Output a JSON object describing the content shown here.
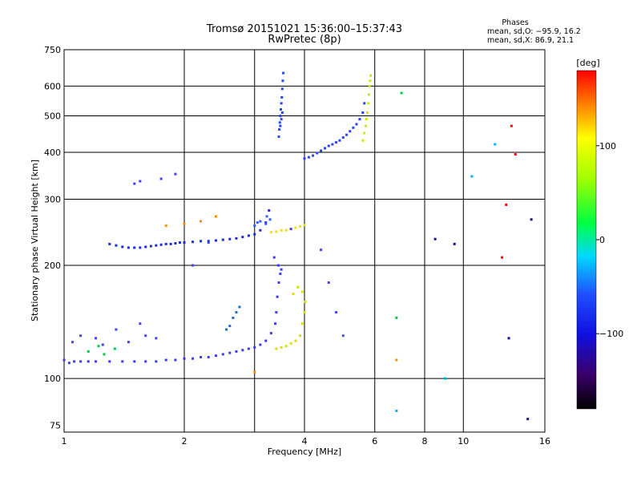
{
  "header": {
    "title_line1": "Tromsø 20151021 15:36:00–15:37:43",
    "title_line2": "RwPretec (8p)",
    "stats_title": "Phases",
    "stats_line1": "mean, sd,O: −95.9, 16.2",
    "stats_line2": "mean, sd,X:  86.9, 21.1"
  },
  "chart_data": {
    "type": "scatter",
    "title": "Tromsø 20151021 15:36:00–15:37:43",
    "subtitle": "RwPretec (8p)",
    "xlabel": "Frequency [MHz]",
    "ylabel": "Stationary phase Virtual Height [km]",
    "x_scale": "log",
    "y_scale": "log",
    "xlim": [
      1,
      16
    ],
    "ylim": [
      72,
      750
    ],
    "x_ticks": [
      1,
      2,
      4,
      6,
      8,
      10,
      16
    ],
    "x_tick_labels": [
      "1",
      "2",
      "4",
      "6",
      "8",
      "10",
      "16"
    ],
    "x_gridlines": [
      1,
      2,
      3,
      4,
      6,
      8,
      10,
      16
    ],
    "y_ticks": [
      75,
      100,
      200,
      300,
      400,
      500,
      600,
      750
    ],
    "y_tick_labels": [
      "75",
      "100",
      "200",
      "300",
      "400",
      "500",
      "600",
      "750"
    ],
    "y_gridlines": [
      100,
      200,
      300,
      400,
      500,
      600
    ],
    "grid": true,
    "colorbar": {
      "label": "[deg]",
      "min": -180,
      "max": 180,
      "ticks": [
        100,
        0,
        -100
      ],
      "tick_labels": [
        "100",
        "0",
        "−100"
      ]
    },
    "series": [
      {
        "color": "#3a3aff",
        "points": [
          [
            1.0,
            112
          ],
          [
            1.03,
            110
          ],
          [
            1.06,
            111
          ],
          [
            1.1,
            111
          ],
          [
            1.15,
            111
          ],
          [
            1.2,
            111
          ],
          [
            1.3,
            111
          ],
          [
            1.4,
            111
          ],
          [
            1.5,
            111
          ],
          [
            1.6,
            111
          ],
          [
            1.7,
            111
          ],
          [
            1.8,
            112
          ],
          [
            1.9,
            112
          ],
          [
            2.0,
            113
          ],
          [
            2.1,
            113
          ],
          [
            2.2,
            114
          ],
          [
            2.3,
            114
          ],
          [
            2.4,
            115
          ],
          [
            2.5,
            116
          ],
          [
            2.6,
            117
          ],
          [
            2.7,
            118
          ],
          [
            2.8,
            119
          ],
          [
            2.9,
            120
          ],
          [
            3.0,
            121
          ],
          [
            3.1,
            123
          ],
          [
            3.2,
            126
          ],
          [
            3.3,
            132
          ],
          [
            3.38,
            140
          ],
          [
            3.4,
            150
          ],
          [
            3.42,
            165
          ],
          [
            3.45,
            180
          ],
          [
            3.48,
            190
          ],
          [
            3.5,
            195
          ],
          [
            3.44,
            200
          ],
          [
            3.36,
            210
          ]
        ],
        "phase": -100
      },
      {
        "color": "#1a2ae0",
        "points": [
          [
            1.3,
            228
          ],
          [
            1.35,
            226
          ],
          [
            1.4,
            224
          ],
          [
            1.45,
            223
          ],
          [
            1.5,
            223
          ],
          [
            1.55,
            223
          ],
          [
            1.6,
            224
          ],
          [
            1.65,
            225
          ],
          [
            1.7,
            226
          ],
          [
            1.75,
            227
          ],
          [
            1.8,
            228
          ],
          [
            1.85,
            228
          ],
          [
            1.9,
            229
          ],
          [
            1.95,
            230
          ],
          [
            2.0,
            230
          ],
          [
            2.1,
            231
          ],
          [
            2.2,
            232
          ],
          [
            2.3,
            232
          ],
          [
            2.4,
            233
          ],
          [
            2.5,
            234
          ],
          [
            2.6,
            235
          ],
          [
            2.7,
            236
          ],
          [
            2.8,
            238
          ],
          [
            2.9,
            240
          ],
          [
            3.0,
            242
          ],
          [
            3.1,
            248
          ],
          [
            3.2,
            260
          ],
          [
            3.26,
            280
          ]
        ],
        "phase": -110
      },
      {
        "color": "#2a40ff",
        "points": [
          [
            4.0,
            385
          ],
          [
            4.1,
            388
          ],
          [
            4.2,
            392
          ],
          [
            4.3,
            398
          ],
          [
            4.4,
            404
          ],
          [
            4.5,
            410
          ],
          [
            4.6,
            416
          ],
          [
            4.7,
            420
          ],
          [
            4.8,
            425
          ],
          [
            4.9,
            430
          ],
          [
            5.0,
            438
          ],
          [
            5.1,
            445
          ],
          [
            5.2,
            455
          ],
          [
            5.3,
            465
          ],
          [
            5.4,
            475
          ],
          [
            5.5,
            490
          ],
          [
            5.6,
            510
          ],
          [
            5.65,
            540
          ]
        ],
        "phase": -105
      },
      {
        "color": "#2048ff",
        "points": [
          [
            3.45,
            440
          ],
          [
            3.46,
            460
          ],
          [
            3.47,
            480
          ],
          [
            3.48,
            500
          ],
          [
            3.49,
            520
          ],
          [
            3.5,
            540
          ],
          [
            3.51,
            560
          ],
          [
            3.52,
            590
          ],
          [
            3.53,
            620
          ],
          [
            3.54,
            650
          ],
          [
            3.48,
            470
          ],
          [
            3.5,
            490
          ],
          [
            3.52,
            510
          ]
        ],
        "phase": -102
      },
      {
        "color": "#d8e000",
        "points": [
          [
            3.4,
            120
          ],
          [
            3.5,
            121
          ],
          [
            3.6,
            122
          ],
          [
            3.7,
            124
          ],
          [
            3.8,
            126
          ],
          [
            3.9,
            130
          ],
          [
            3.95,
            140
          ],
          [
            4.0,
            150
          ],
          [
            4.02,
            160
          ],
          [
            3.95,
            170
          ],
          [
            3.85,
            175
          ],
          [
            3.75,
            168
          ]
        ],
        "phase": 90
      },
      {
        "color": "#f0e000",
        "points": [
          [
            3.3,
            245
          ],
          [
            3.4,
            246
          ],
          [
            3.5,
            248
          ],
          [
            3.6,
            248
          ],
          [
            3.7,
            250
          ],
          [
            3.8,
            252
          ],
          [
            3.9,
            254
          ],
          [
            4.0,
            256
          ]
        ],
        "phase": 95
      },
      {
        "color": "#cce800",
        "points": [
          [
            5.6,
            430
          ],
          [
            5.65,
            450
          ],
          [
            5.7,
            470
          ],
          [
            5.72,
            490
          ],
          [
            5.75,
            510
          ],
          [
            5.78,
            540
          ],
          [
            5.8,
            570
          ],
          [
            5.82,
            600
          ],
          [
            5.84,
            620
          ],
          [
            5.86,
            640
          ]
        ],
        "phase": 85
      },
      {
        "color": "#1c6cd6",
        "points": [
          [
            2.55,
            135
          ],
          [
            2.6,
            138
          ],
          [
            2.65,
            145
          ],
          [
            2.7,
            150
          ],
          [
            2.75,
            155
          ]
        ],
        "phase": -70
      },
      {
        "color": "#3060ff",
        "points": [
          [
            3.0,
            255
          ],
          [
            3.05,
            260
          ],
          [
            3.1,
            262
          ],
          [
            3.2,
            258
          ],
          [
            3.22,
            270
          ],
          [
            3.28,
            265
          ]
        ],
        "phase": -60
      },
      {
        "color": "#ff8c00",
        "points": [
          [
            1.8,
            255
          ],
          [
            2.0,
            258
          ],
          [
            2.2,
            262
          ],
          [
            2.4,
            270
          ],
          [
            3.0,
            104
          ],
          [
            6.8,
            112
          ]
        ],
        "phase": 140
      },
      {
        "color": "#00cc44",
        "points": [
          [
            1.15,
            118
          ],
          [
            1.22,
            122
          ],
          [
            1.26,
            116
          ],
          [
            1.34,
            120
          ],
          [
            6.8,
            145
          ],
          [
            7.0,
            575
          ]
        ],
        "phase": 20
      },
      {
        "color": "#ff0000",
        "points": [
          [
            12.5,
            210
          ],
          [
            12.8,
            290
          ],
          [
            13.2,
            470
          ],
          [
            13.5,
            395
          ]
        ],
        "phase": 170
      },
      {
        "color": "#00b0ff",
        "points": [
          [
            9.0,
            100
          ],
          [
            6.8,
            82
          ],
          [
            10.5,
            345
          ],
          [
            12.0,
            420
          ]
        ],
        "phase": -30
      },
      {
        "color": "#1010a0",
        "points": [
          [
            8.5,
            235
          ],
          [
            9.5,
            228
          ],
          [
            13.0,
            128
          ],
          [
            14.5,
            78
          ],
          [
            14.8,
            265
          ]
        ],
        "phase": -140
      },
      {
        "color": "#4040ff",
        "points": [
          [
            1.05,
            125
          ],
          [
            1.1,
            130
          ],
          [
            1.2,
            128
          ],
          [
            1.25,
            123
          ],
          [
            1.35,
            135
          ],
          [
            1.45,
            125
          ],
          [
            1.55,
            140
          ],
          [
            1.6,
            130
          ],
          [
            1.7,
            128
          ],
          [
            1.5,
            330
          ],
          [
            1.55,
            335
          ],
          [
            1.75,
            340
          ],
          [
            1.9,
            350
          ],
          [
            2.1,
            200
          ],
          [
            2.3,
            230
          ],
          [
            3.7,
            250
          ],
          [
            4.4,
            220
          ],
          [
            4.6,
            180
          ],
          [
            4.8,
            150
          ],
          [
            5.0,
            130
          ]
        ],
        "phase": -90
      }
    ]
  }
}
